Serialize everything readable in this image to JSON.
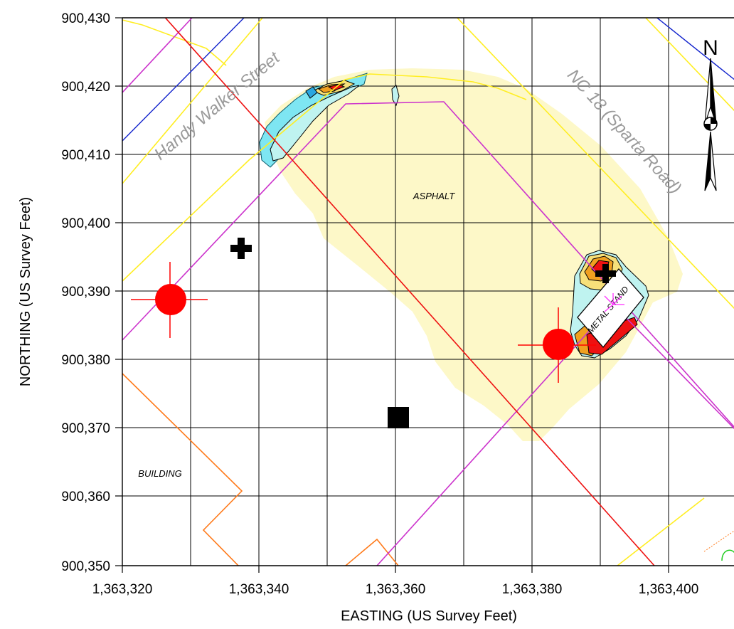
{
  "axes": {
    "x_title": "EASTING (US Survey Feet)",
    "y_title": "NORTHING (US Survey Feet)",
    "x_ticks": [
      "1,363,320",
      "1,363,340",
      "1,363,360",
      "1,363,380",
      "1,363,400"
    ],
    "y_ticks": [
      "900,430",
      "900,420",
      "900,410",
      "900,400",
      "900,390",
      "900,380",
      "900,370",
      "900,360",
      "900,350"
    ]
  },
  "streets": {
    "handy_walker": "Handy Walker Street",
    "nc18": "NC 18 (Sparta Road)"
  },
  "areas": {
    "asphalt": "ASPHALT",
    "building": "BUILDING",
    "metal_stand": "METAL STAND"
  },
  "north_arrow": {
    "letter": "N"
  },
  "colors": {
    "asphalt_fill": "#fdf8c8",
    "red_line": "#ee1111",
    "magenta_line": "#cc33cc",
    "yellow_line": "#ffee22",
    "blue_line": "#1122cc",
    "orange_line": "#ff7a1a",
    "marker_red": "#ff0000",
    "grid": "#000000"
  },
  "chart_data": {
    "type": "map",
    "x_range": [
      1363320,
      1363410
    ],
    "y_range": [
      900350,
      900430
    ],
    "grid": true,
    "markers": [
      {
        "kind": "red-circle-target",
        "easting": 1363327,
        "northing": 900388.8
      },
      {
        "kind": "red-circle-target",
        "easting": 1363384,
        "northing": 900382.2
      },
      {
        "kind": "black-cross",
        "easting": 1363337,
        "northing": 900396.5
      },
      {
        "kind": "black-cross",
        "easting": 1363391,
        "northing": 900393
      },
      {
        "kind": "black-square",
        "easting": 1363360.5,
        "northing": 900371.5
      }
    ]
  }
}
